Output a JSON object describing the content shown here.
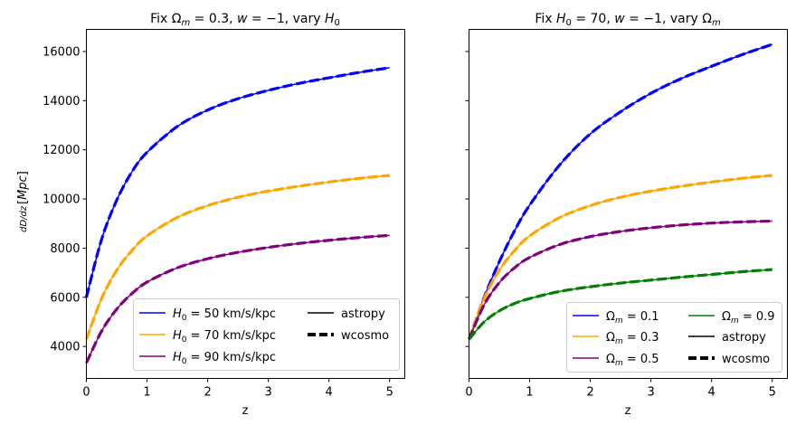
{
  "figure": {
    "shared_ylabel": "dD/dz [Mpc]",
    "ylim": [
      2700,
      16900
    ],
    "yticks": [
      4000,
      6000,
      8000,
      10000,
      12000,
      14000,
      16000
    ],
    "xticks": [
      0,
      1,
      2,
      3,
      4,
      5
    ]
  },
  "chart_data": [
    {
      "type": "line",
      "title": "Fix Ωm = 0.3, w = −1, vary H0",
      "xlabel": "z",
      "ylabel": "dD/dz [Mpc]",
      "xlim": [
        0,
        5.25
      ],
      "ylim": [
        2700,
        16900
      ],
      "grid": false,
      "legend_placement": "lower-right",
      "legend_columns": 2,
      "series": [
        {
          "name": "H0 = 50 km/s/kpc",
          "color": "#0000ff",
          "x": [
            0,
            0.25,
            0.5,
            0.75,
            1,
            1.5,
            2,
            2.5,
            3,
            3.5,
            4,
            4.5,
            5
          ],
          "values": [
            6000,
            8350,
            9950,
            11100,
            11900,
            12950,
            13620,
            14080,
            14420,
            14700,
            14930,
            15150,
            15340
          ]
        },
        {
          "name": "H0 = 70 km/s/kpc",
          "color": "#ffa500",
          "x": [
            0,
            0.25,
            0.5,
            0.75,
            1,
            1.5,
            2,
            2.5,
            3,
            3.5,
            4,
            4.5,
            5
          ],
          "values": [
            4290,
            5950,
            7100,
            7900,
            8500,
            9250,
            9730,
            10070,
            10320,
            10520,
            10690,
            10840,
            10960
          ]
        },
        {
          "name": "H0 = 90 km/s/kpc",
          "color": "#800080",
          "x": [
            0,
            0.25,
            0.5,
            0.75,
            1,
            1.5,
            2,
            2.5,
            3,
            3.5,
            4,
            4.5,
            5
          ],
          "values": [
            3330,
            4620,
            5520,
            6150,
            6620,
            7200,
            7570,
            7830,
            8030,
            8190,
            8320,
            8430,
            8520
          ]
        }
      ],
      "line_styles": [
        {
          "name": "astropy",
          "style": "solid"
        },
        {
          "name": "wcosmo",
          "style": "dashed"
        }
      ]
    },
    {
      "type": "line",
      "title": "Fix H0 = 70, w = −1, vary Ωm",
      "xlabel": "z",
      "xlim": [
        0,
        5.25
      ],
      "ylim": [
        2700,
        16900
      ],
      "grid": false,
      "legend_placement": "lower-right",
      "legend_columns": 2,
      "series": [
        {
          "name": "Ωm = 0.1",
          "color": "#0000ff",
          "x": [
            0,
            0.25,
            0.5,
            0.75,
            1,
            1.5,
            2,
            2.5,
            3,
            3.5,
            4,
            4.5,
            5
          ],
          "values": [
            4290,
            6000,
            7450,
            8700,
            9750,
            11400,
            12650,
            13550,
            14300,
            14900,
            15400,
            15870,
            16290
          ]
        },
        {
          "name": "Ωm = 0.3",
          "color": "#ffa500",
          "x": [
            0,
            0.25,
            0.5,
            0.75,
            1,
            1.5,
            2,
            2.5,
            3,
            3.5,
            4,
            4.5,
            5
          ],
          "values": [
            4290,
            5950,
            7100,
            7900,
            8500,
            9250,
            9730,
            10070,
            10320,
            10520,
            10690,
            10840,
            10960
          ]
        },
        {
          "name": "Ωm = 0.5",
          "color": "#800080",
          "x": [
            0,
            0.25,
            0.5,
            0.75,
            1,
            1.5,
            2,
            2.5,
            3,
            3.5,
            4,
            4.5,
            5
          ],
          "values": [
            4290,
            5700,
            6600,
            7200,
            7620,
            8150,
            8470,
            8680,
            8830,
            8940,
            9020,
            9070,
            9100
          ]
        },
        {
          "name": "Ωm = 0.9",
          "color": "#008000",
          "x": [
            0,
            0.25,
            0.5,
            0.75,
            1,
            1.5,
            2,
            2.5,
            3,
            3.5,
            4,
            4.5,
            5
          ],
          "values": [
            4290,
            5000,
            5450,
            5750,
            5950,
            6240,
            6430,
            6580,
            6700,
            6820,
            6930,
            7040,
            7130
          ]
        }
      ],
      "line_styles": [
        {
          "name": "astropy",
          "style": "solid"
        },
        {
          "name": "wcosmo",
          "style": "dashed"
        }
      ]
    }
  ]
}
